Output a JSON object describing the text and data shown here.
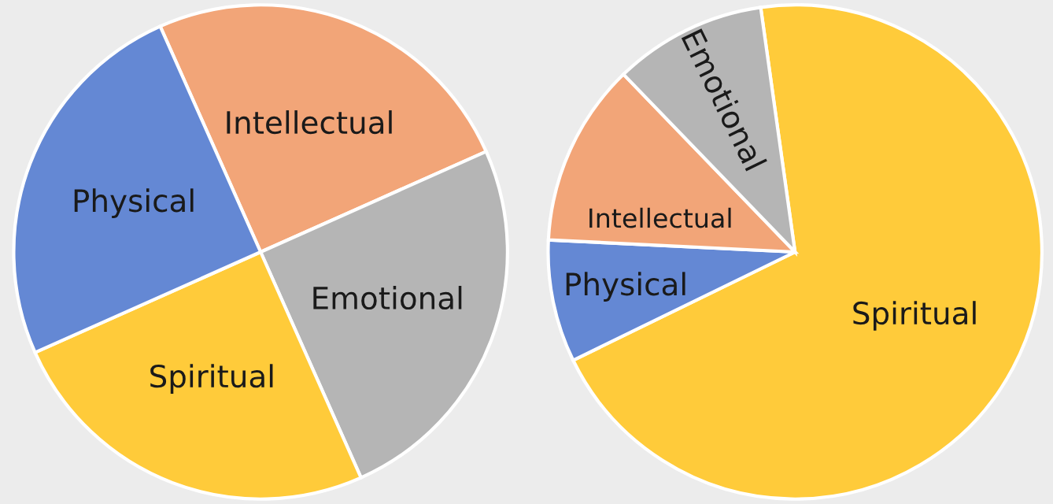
{
  "chart_data": [
    {
      "type": "pie",
      "categories": [
        "Intellectual",
        "Emotional",
        "Spiritual",
        "Physical"
      ],
      "values": [
        25,
        25,
        25,
        25
      ],
      "colors": [
        "#f2a578",
        "#b5b5b5",
        "#ffcb3a",
        "#6488d4"
      ]
    },
    {
      "type": "pie",
      "categories": [
        "Spiritual",
        "Physical",
        "Intellectual",
        "Emotional"
      ],
      "values": [
        70,
        8,
        12,
        10
      ],
      "colors": [
        "#ffcb3a",
        "#6488d4",
        "#f2a578",
        "#b5b5b5"
      ]
    }
  ]
}
